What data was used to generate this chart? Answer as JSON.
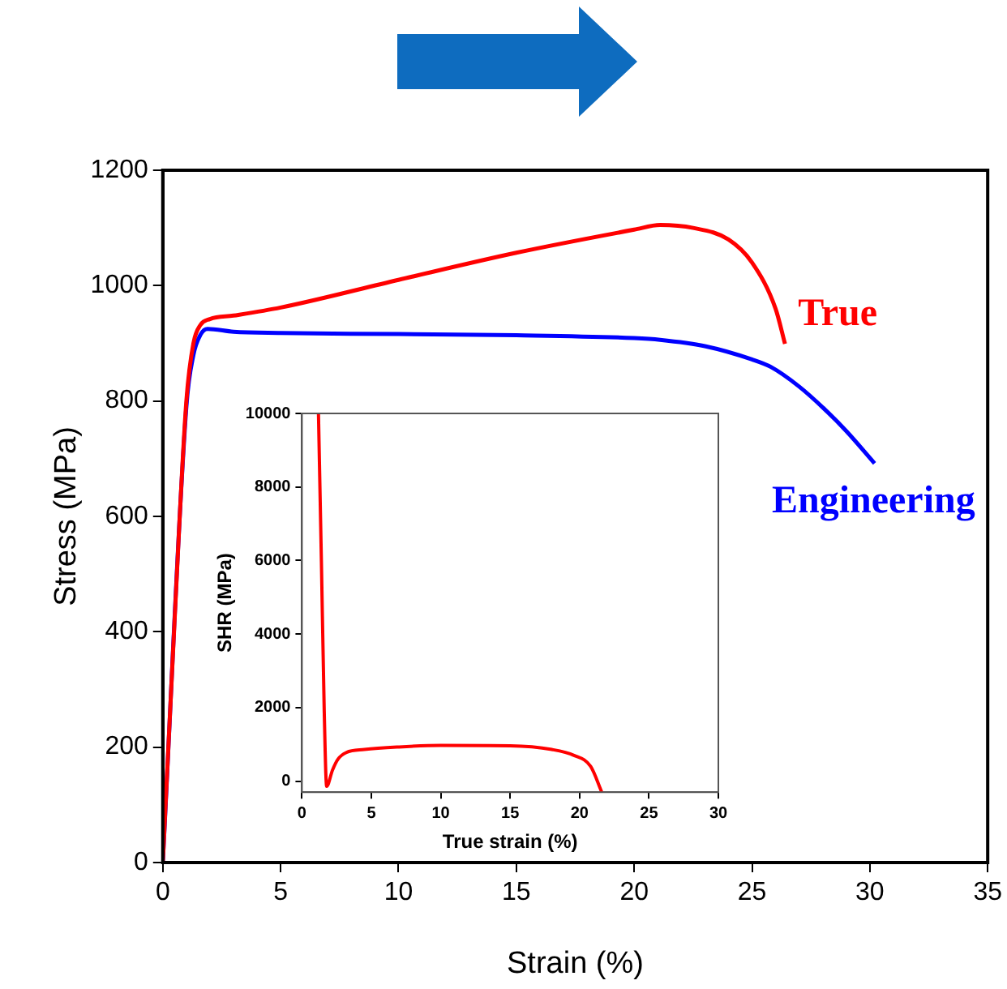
{
  "chart_data": [
    {
      "type": "line",
      "xlabel": "Strain (%)",
      "ylabel": "Stress (MPa)",
      "xlim": [
        0,
        35
      ],
      "xticks": [
        0,
        5,
        10,
        15,
        20,
        25,
        30,
        35
      ],
      "ylim": [
        0,
        1200
      ],
      "yticks": [
        0,
        200,
        400,
        600,
        800,
        1000,
        1200
      ],
      "marker": "none",
      "series": [
        {
          "name": "True",
          "color": "#ff0000",
          "x": [
            0,
            0.5,
            1,
            1.3,
            1.6,
            2,
            3,
            5,
            10,
            15,
            20,
            21.1,
            22.5,
            24,
            25,
            26,
            26.4
          ],
          "values": [
            0,
            420,
            800,
            900,
            932,
            942,
            948,
            962,
            1010,
            1057,
            1097,
            1105,
            1100,
            1080,
            1040,
            960,
            899
          ]
        },
        {
          "name": "Engineering",
          "color": "#0000ff",
          "x": [
            0,
            0.5,
            1,
            1.3,
            1.6,
            1.9,
            3,
            5,
            10,
            15,
            20,
            21.1,
            23,
            25,
            25.8,
            27,
            28.1,
            29,
            30.2
          ],
          "values": [
            0,
            null,
            790,
            880,
            915,
            925,
            920,
            918,
            916,
            914,
            909,
            906,
            895,
            872,
            859,
            825,
            785,
            748,
            692
          ]
        }
      ]
    },
    {
      "type": "line",
      "xlabel": "True strain (%)",
      "ylabel": "SHR (MPa)",
      "xlim": [
        0,
        30
      ],
      "xticks": [
        0,
        5,
        10,
        15,
        20,
        25,
        30
      ],
      "ylim": [
        -300,
        10000
      ],
      "yticks": [
        0,
        2000,
        4000,
        6000,
        8000,
        10000
      ],
      "marker": "none",
      "series": [
        {
          "color": "#ff0000",
          "x": [
            1.19,
            1.4,
            1.6,
            1.78,
            2.2,
            2.6,
            3.2,
            4.5,
            7,
            10,
            15,
            18,
            19.6,
            20.8,
            21.6
          ],
          "values": [
            10000,
            6000,
            2000,
            -140,
            300,
            600,
            780,
            860,
            930,
            970,
            960,
            860,
            700,
            400,
            -300
          ]
        }
      ]
    }
  ]
}
